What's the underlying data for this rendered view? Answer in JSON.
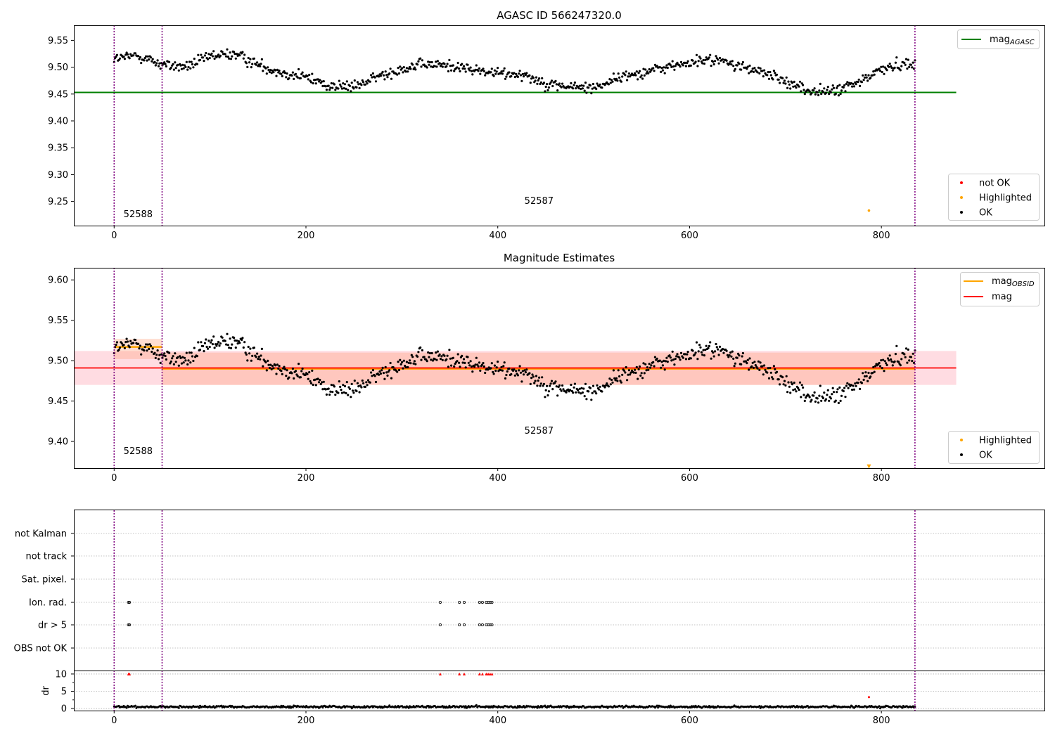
{
  "chart_data": [
    {
      "type": "scatter",
      "title": "AGASC ID 566247320.0",
      "xlim": [
        -42,
        970
      ],
      "ylim": [
        9.205,
        9.578
      ],
      "xticks": [
        "0",
        "200",
        "400",
        "600",
        "800"
      ],
      "yticks": [
        "9.55",
        "9.50",
        "9.45",
        "9.40",
        "9.35",
        "9.30",
        "9.25"
      ],
      "vlines_x": [
        0,
        50,
        835
      ],
      "hline": {
        "name": "mag",
        "subscript": "AGASC",
        "y": 9.453,
        "x_range": [
          -42,
          878
        ],
        "color": "#008000"
      },
      "obsid_labels": [
        {
          "text": "52588",
          "x": 25,
          "y": 9.226
        },
        {
          "text": "52587",
          "x": 443,
          "y": 9.251
        }
      ],
      "highlighted_points": [
        {
          "x": 787,
          "y": 9.233
        }
      ],
      "series_trend": {
        "x_range": [
          0,
          835
        ],
        "knots_x": [
          0,
          25,
          50,
          75,
          100,
          125,
          150,
          175,
          200,
          225,
          250,
          275,
          300,
          325,
          350,
          375,
          400,
          425,
          450,
          475,
          500,
          525,
          550,
          575,
          600,
          625,
          650,
          675,
          700,
          725,
          750,
          775,
          800,
          835
        ],
        "knots_y": [
          9.515,
          9.522,
          9.505,
          9.5,
          9.52,
          9.525,
          9.505,
          9.49,
          9.482,
          9.465,
          9.463,
          9.482,
          9.498,
          9.505,
          9.503,
          9.495,
          9.488,
          9.488,
          9.47,
          9.463,
          9.462,
          9.48,
          9.49,
          9.5,
          9.508,
          9.515,
          9.503,
          9.49,
          9.475,
          9.455,
          9.455,
          9.47,
          9.497,
          9.51
        ],
        "n_points": 830,
        "scatter": 0.009
      },
      "legend_lines": [
        {
          "label": "mag",
          "subscript": "AGASC",
          "color": "#008000"
        }
      ],
      "legend_points": [
        {
          "label": "not OK",
          "color": "#ff0000"
        },
        {
          "label": "Highlighted",
          "color": "#ffa500"
        },
        {
          "label": "OK",
          "color": "#000000"
        }
      ]
    },
    {
      "type": "scatter",
      "title": "Magnitude Estimates",
      "xlim": [
        -42,
        970
      ],
      "ylim": [
        9.367,
        9.615
      ],
      "xticks": [
        "0",
        "200",
        "400",
        "600",
        "800"
      ],
      "yticks": [
        "9.60",
        "9.55",
        "9.50",
        "9.45",
        "9.40"
      ],
      "vlines_x": [
        0,
        50,
        835
      ],
      "mag_line": {
        "name": "mag",
        "y": 9.491,
        "x_range": [
          -42,
          878
        ],
        "band": [
          9.47,
          9.512
        ],
        "color": "#ff0000"
      },
      "obsid_lines": [
        {
          "name": "mag",
          "subscript": "OBSID",
          "y": 9.517,
          "x_range": [
            0,
            50
          ],
          "band": [
            9.502,
            9.527
          ],
          "color": "#ffa500"
        },
        {
          "name": "mag",
          "subscript": "OBSID",
          "y": 9.49,
          "x_range": [
            50,
            835
          ],
          "band": [
            9.47,
            9.51
          ],
          "color": "#ffa500"
        }
      ],
      "obsid_labels": [
        {
          "text": "52588",
          "x": 25,
          "y": 9.388
        },
        {
          "text": "52587",
          "x": 443,
          "y": 9.413
        }
      ],
      "highlighted_points": [
        {
          "x": 787,
          "y": 9.369
        }
      ],
      "legend_lines": [
        {
          "label": "mag",
          "subscript": "OBSID",
          "color": "#ffa500"
        },
        {
          "label": "mag",
          "subscript": "",
          "color": "#ff0000"
        }
      ],
      "legend_points": [
        {
          "label": "Highlighted",
          "color": "#ffa500"
        },
        {
          "label": "OK",
          "color": "#000000"
        }
      ]
    },
    {
      "type": "scatter",
      "title": "",
      "xlim": [
        -42,
        970
      ],
      "xticks": [
        "0",
        "200",
        "400",
        "600",
        "800"
      ],
      "vlines_x": [
        0,
        50,
        835
      ],
      "flag_rows": [
        "not Kalman",
        "not track",
        "Sat. pixel.",
        "Ion. rad.",
        "dr > 5",
        "OBS not OK"
      ],
      "flag_points": {
        "Ion. rad.": [
          15,
          16,
          340,
          360,
          365,
          381,
          384,
          388,
          390,
          392,
          394
        ],
        "dr > 5": [
          15,
          16,
          340,
          360,
          365,
          381,
          384,
          388,
          390,
          392,
          394
        ]
      },
      "dr_ylabel": "dr",
      "dr_ylim": [
        -0.6,
        10.8
      ],
      "dr_yticks": [
        "10",
        "5",
        "0"
      ],
      "dr_clipped_points_x": [
        15,
        16,
        340,
        360,
        365,
        381,
        384,
        388,
        390,
        392,
        394
      ],
      "dr_notok_points": [
        {
          "x": 787,
          "y": 3.3
        }
      ],
      "dr_baseline": {
        "mean": 0.5,
        "scatter": 0.25
      }
    }
  ],
  "colors": {
    "ok": "#000000",
    "not_ok": "#ff0000",
    "highlighted": "#ffa500",
    "vline": "#800080",
    "grid": "#b0b0b0",
    "band_mag": "#ffc0cb",
    "band_obsid": "#ffa07a"
  }
}
